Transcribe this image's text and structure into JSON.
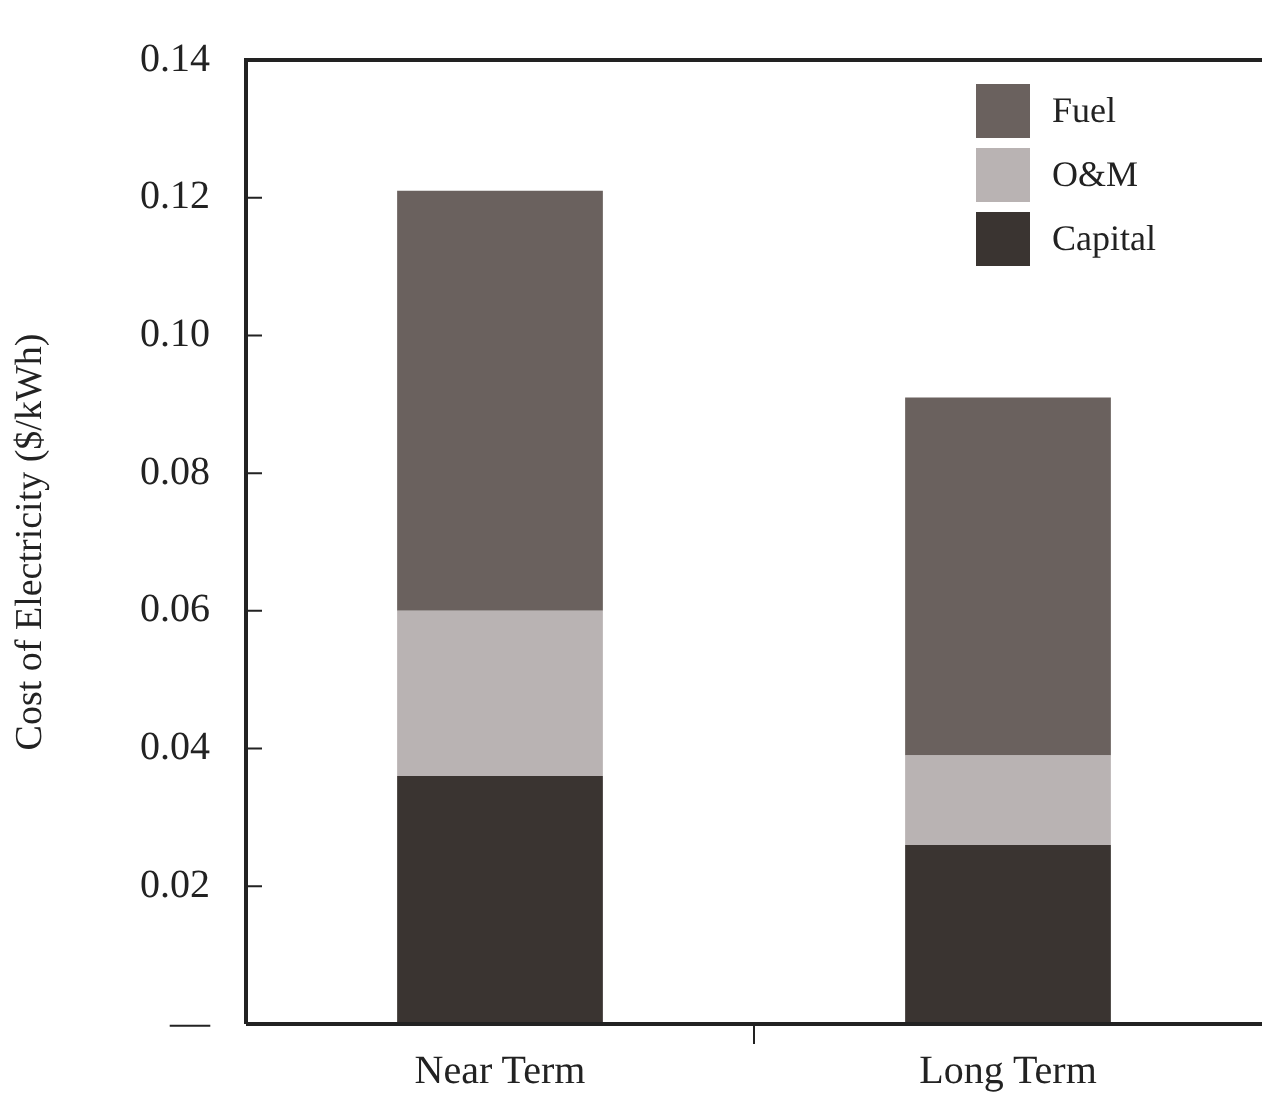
{
  "chart_data": {
    "type": "bar",
    "stacked": true,
    "ylabel": "Cost of Electricity ($/kWh)",
    "categories": [
      "Near Term",
      "Long Term"
    ],
    "series": [
      {
        "name": "Capital",
        "color": "#3a3431",
        "values": [
          0.036,
          0.026
        ]
      },
      {
        "name": "O&M",
        "color": "#b9b3b3",
        "values": [
          0.024,
          0.013
        ]
      },
      {
        "name": "Fuel",
        "color": "#6a615e",
        "values": [
          0.061,
          0.052
        ]
      }
    ],
    "ylim": [
      0,
      0.14
    ],
    "yticks": [
      {
        "value": 0,
        "label": "—"
      },
      0.02,
      0.04,
      0.06,
      0.08,
      {
        "value": 0.1,
        "label": "0.10"
      },
      0.12,
      0.14
    ],
    "grid": false,
    "legend": "top right"
  }
}
